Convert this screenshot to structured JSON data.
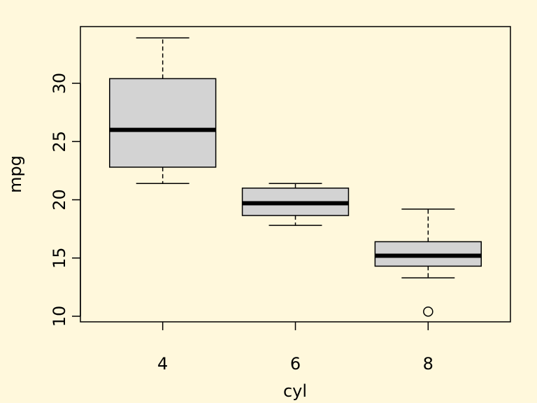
{
  "chart_data": {
    "type": "boxplot",
    "x_label": "cyl",
    "y_label": "mpg",
    "categories": [
      "4",
      "6",
      "8"
    ],
    "boxes": [
      {
        "min": 21.4,
        "q1": 22.8,
        "median": 26.0,
        "q3": 30.4,
        "max": 33.9,
        "outliers": []
      },
      {
        "min": 17.8,
        "q1": 18.65,
        "median": 19.7,
        "q3": 21.0,
        "max": 21.4,
        "outliers": []
      },
      {
        "min": 13.3,
        "q1": 14.3,
        "median": 15.2,
        "q3": 16.4,
        "max": 19.2,
        "outliers": [
          10.4
        ]
      }
    ],
    "color": "#d3d3d3",
    "background": "#fff8dc",
    "ylim": [
      9.52,
      34.87
    ],
    "yticks": [
      10,
      15,
      20,
      25,
      30
    ]
  }
}
